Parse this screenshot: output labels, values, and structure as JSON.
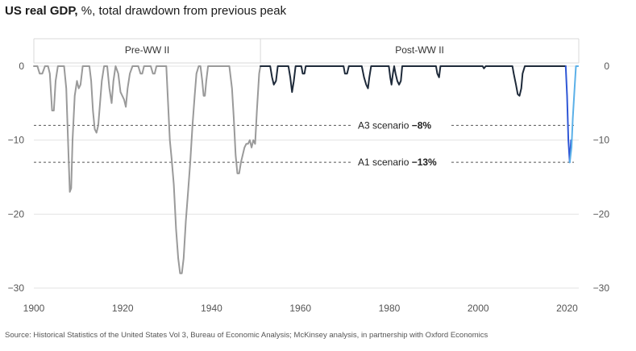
{
  "title": {
    "bold": "US real GDP,",
    "rest": " %, total drawdown from previous peak"
  },
  "source": "Source: Historical Statistics of the United States Vol 3, Bureau of Economic Analysis; McKinsey analysis, in partnership with Oxford Economics",
  "chart_data": {
    "type": "line",
    "title": "US real GDP, %, total drawdown from previous peak",
    "xlabel": "",
    "ylabel": "",
    "xlim": [
      1900,
      2023
    ],
    "ylim": [
      -30,
      0
    ],
    "x_ticks": [
      1900,
      1920,
      1940,
      1960,
      1980,
      2000,
      2020
    ],
    "x_tick_labels": [
      "1900",
      "1920",
      "1940",
      "1960",
      "1980",
      "2000",
      "2020"
    ],
    "y_ticks": [
      0,
      -10,
      -20,
      -30
    ],
    "y_tick_labels": [
      "0",
      "−10",
      "−20",
      "−30"
    ],
    "grid": true,
    "periods": [
      {
        "label": "Pre-WW II",
        "from": 1900,
        "to": 1951
      },
      {
        "label": "Post-WW II",
        "from": 1951,
        "to": 2023
      }
    ],
    "reference_lines": [
      {
        "label": "A3 scenario",
        "value_label": "−8%",
        "y": -8
      },
      {
        "label": "A1 scenario",
        "value_label": "−13%",
        "y": -13
      }
    ],
    "series": [
      {
        "color": "#9a9a9a",
        "points": [
          [
            1900,
            0
          ],
          [
            1900.8,
            0
          ],
          [
            1901.3,
            -1
          ],
          [
            1901.9,
            -1
          ],
          [
            1902.5,
            0
          ],
          [
            1903.2,
            0
          ],
          [
            1903.6,
            -1
          ],
          [
            1904.1,
            -6
          ],
          [
            1904.5,
            -6
          ],
          [
            1904.9,
            -2
          ],
          [
            1905.4,
            0
          ],
          [
            1906.8,
            0
          ],
          [
            1907.3,
            -3
          ],
          [
            1907.8,
            -12
          ],
          [
            1908.1,
            -17
          ],
          [
            1908.4,
            -16.5
          ],
          [
            1908.7,
            -10
          ],
          [
            1909.2,
            -4
          ],
          [
            1909.7,
            -2
          ],
          [
            1910.1,
            -3
          ],
          [
            1910.5,
            -2.5
          ],
          [
            1911,
            0
          ],
          [
            1912.5,
            0
          ],
          [
            1912.9,
            -2
          ],
          [
            1913.3,
            -6
          ],
          [
            1913.7,
            -8.5
          ],
          [
            1914.1,
            -9
          ],
          [
            1914.5,
            -8
          ],
          [
            1914.9,
            -5
          ],
          [
            1915.3,
            -2
          ],
          [
            1915.8,
            0
          ],
          [
            1916.5,
            0
          ],
          [
            1917,
            -3
          ],
          [
            1917.5,
            -5
          ],
          [
            1917.9,
            -2
          ],
          [
            1918.4,
            0
          ],
          [
            1919,
            -1
          ],
          [
            1919.5,
            -3.5
          ],
          [
            1919.9,
            -4
          ],
          [
            1920.3,
            -4.5
          ],
          [
            1920.7,
            -5.5
          ],
          [
            1921.1,
            -3
          ],
          [
            1921.6,
            -1
          ],
          [
            1922.2,
            0
          ],
          [
            1923.5,
            0
          ],
          [
            1924,
            -1
          ],
          [
            1924.4,
            -1
          ],
          [
            1924.8,
            0
          ],
          [
            1926.3,
            0
          ],
          [
            1926.8,
            -1
          ],
          [
            1927.2,
            -1
          ],
          [
            1927.6,
            0
          ],
          [
            1929.8,
            0
          ],
          [
            1930.2,
            -5
          ],
          [
            1930.6,
            -10
          ],
          [
            1931,
            -12.5
          ],
          [
            1931.5,
            -16
          ],
          [
            1932,
            -22
          ],
          [
            1932.5,
            -26
          ],
          [
            1932.9,
            -28
          ],
          [
            1933.3,
            -28
          ],
          [
            1933.7,
            -26
          ],
          [
            1934.2,
            -21
          ],
          [
            1934.7,
            -17
          ],
          [
            1935.2,
            -13
          ],
          [
            1935.7,
            -8
          ],
          [
            1936.2,
            -4
          ],
          [
            1936.6,
            -1
          ],
          [
            1937.1,
            0
          ],
          [
            1937.5,
            0
          ],
          [
            1937.9,
            -2
          ],
          [
            1938.2,
            -4
          ],
          [
            1938.5,
            -4
          ],
          [
            1938.8,
            -2
          ],
          [
            1939.2,
            0
          ],
          [
            1944,
            0
          ],
          [
            1944.6,
            -3
          ],
          [
            1945,
            -7
          ],
          [
            1945.4,
            -12
          ],
          [
            1945.8,
            -14.5
          ],
          [
            1946.2,
            -14.5
          ],
          [
            1946.6,
            -13
          ],
          [
            1947,
            -12
          ],
          [
            1947.4,
            -11
          ],
          [
            1947.8,
            -10.5
          ],
          [
            1948.2,
            -10.5
          ],
          [
            1948.6,
            -10
          ],
          [
            1949,
            -11
          ],
          [
            1949.4,
            -10
          ],
          [
            1949.8,
            -10.5
          ],
          [
            1950.2,
            -6
          ],
          [
            1950.7,
            -1
          ],
          [
            1951,
            0
          ]
        ]
      },
      {
        "color": "#1e2a3a",
        "points": [
          [
            1951,
            0
          ],
          [
            1953.2,
            0
          ],
          [
            1953.6,
            -1.5
          ],
          [
            1954,
            -2.5
          ],
          [
            1954.5,
            -2
          ],
          [
            1954.9,
            0
          ],
          [
            1957.3,
            0
          ],
          [
            1957.7,
            -1.5
          ],
          [
            1958.1,
            -3.5
          ],
          [
            1958.5,
            -2
          ],
          [
            1958.9,
            0
          ],
          [
            1960.2,
            0
          ],
          [
            1960.5,
            -1
          ],
          [
            1960.9,
            -1
          ],
          [
            1961.2,
            0
          ],
          [
            1969.7,
            0
          ],
          [
            1970,
            -1
          ],
          [
            1970.5,
            -1
          ],
          [
            1970.9,
            0
          ],
          [
            1973.8,
            0
          ],
          [
            1974.3,
            -1.5
          ],
          [
            1974.8,
            -2.5
          ],
          [
            1975.2,
            -3
          ],
          [
            1975.5,
            -1.5
          ],
          [
            1975.9,
            0
          ],
          [
            1979.9,
            0
          ],
          [
            1980.2,
            -1.5
          ],
          [
            1980.5,
            -2.5
          ],
          [
            1980.8,
            -1
          ],
          [
            1981.1,
            0
          ],
          [
            1981.4,
            -1
          ],
          [
            1981.8,
            -2
          ],
          [
            1982.2,
            -2.5
          ],
          [
            1982.6,
            -2
          ],
          [
            1982.9,
            0
          ],
          [
            1990.5,
            0
          ],
          [
            1990.8,
            -1
          ],
          [
            1991.2,
            -1.5
          ],
          [
            1991.5,
            0
          ],
          [
            2001,
            0
          ],
          [
            2001.3,
            -0.3
          ],
          [
            2001.7,
            0
          ],
          [
            2007.7,
            0
          ],
          [
            2008,
            -1
          ],
          [
            2008.5,
            -2.5
          ],
          [
            2008.9,
            -3.8
          ],
          [
            2009.3,
            -4
          ],
          [
            2009.7,
            -3
          ],
          [
            2010,
            -1
          ],
          [
            2010.5,
            0
          ],
          [
            2019.7,
            0
          ]
        ]
      },
      {
        "color": "#2f57d6",
        "points": [
          [
            2019.7,
            0
          ],
          [
            2020,
            -4
          ],
          [
            2020.3,
            -10
          ],
          [
            2020.6,
            -13
          ],
          [
            2020.9,
            -10
          ]
        ]
      },
      {
        "color": "#5bb0e8",
        "points": [
          [
            2020.6,
            -13
          ],
          [
            2021,
            -11
          ],
          [
            2021.3,
            -7
          ],
          [
            2021.7,
            -3
          ],
          [
            2022,
            0
          ],
          [
            2022.5,
            0
          ]
        ]
      }
    ]
  }
}
